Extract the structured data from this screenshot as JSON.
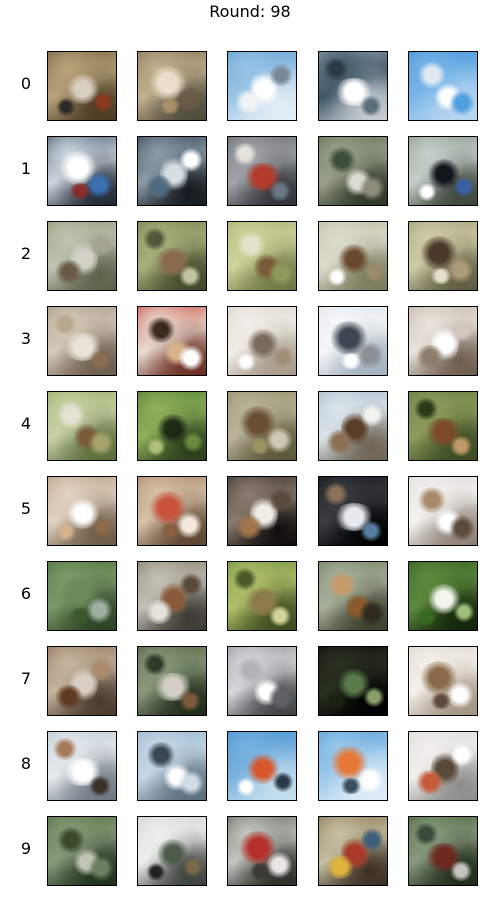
{
  "title": "Round: 98",
  "rows": [
    {
      "label": "0",
      "cells": [
        {
          "bg": [
            "#6e5a3a",
            "#b8a37b",
            "#4a3a22"
          ],
          "c": [
            "#d8cfc0",
            "#8c3a1e",
            "#2b2a26"
          ]
        },
        {
          "bg": [
            "#7c6a4c",
            "#c3b08e",
            "#4d4a3c"
          ],
          "c": [
            "#e9dfcb",
            "#6b5b46",
            "#a89068"
          ]
        },
        {
          "bg": [
            "#5d9ecf",
            "#9ac4e6",
            "#e6eef5"
          ],
          "c": [
            "#ffffff",
            "#f0f3f6",
            "#7a8797"
          ]
        },
        {
          "bg": [
            "#9aa7b4",
            "#3e5666",
            "#c9ced3"
          ],
          "c": [
            "#ffffff",
            "#5b6e7c",
            "#2d3b45"
          ]
        },
        {
          "bg": [
            "#3c8fd8",
            "#7ab6e8",
            "#b9d6ef"
          ],
          "c": [
            "#ffffff",
            "#dfe9f2",
            "#4f9ee0"
          ]
        }
      ]
    },
    {
      "label": "1",
      "cells": [
        {
          "bg": [
            "#394a5e",
            "#ced6de",
            "#1f2733"
          ],
          "c": [
            "#ffffff",
            "#3d6fb3",
            "#8a2d2a"
          ]
        },
        {
          "bg": [
            "#2a3b48",
            "#8c9ba8",
            "#14191e"
          ],
          "c": [
            "#d6dde3",
            "#506b7f",
            "#ffffff"
          ]
        },
        {
          "bg": [
            "#5a5f66",
            "#a2a6aa",
            "#2f3136"
          ],
          "c": [
            "#b43a2c",
            "#6a7784",
            "#e5e2dc"
          ]
        },
        {
          "bg": [
            "#5b6b4a",
            "#9aa28c",
            "#2c3425"
          ],
          "c": [
            "#d9ddd6",
            "#3e4e3a",
            "#8d8b7a"
          ]
        },
        {
          "bg": [
            "#7f8f80",
            "#c6cfc9",
            "#3b4438"
          ],
          "c": [
            "#11161b",
            "#3b5fa4",
            "#ffffff"
          ]
        }
      ]
    },
    {
      "label": "2",
      "cells": [
        {
          "bg": [
            "#8c9670",
            "#bfc3b0",
            "#5c6148"
          ],
          "c": [
            "#d3d2c8",
            "#6b5b46",
            "#a3a48f"
          ]
        },
        {
          "bg": [
            "#6f7c4c",
            "#a9b17b",
            "#3e4729"
          ],
          "c": [
            "#8a6c4d",
            "#c6c2a4",
            "#51583c"
          ]
        },
        {
          "bg": [
            "#a2ac6a",
            "#cfd39b",
            "#6e7642"
          ],
          "c": [
            "#7a5a3a",
            "#e5e2cc",
            "#8f9a5a"
          ]
        },
        {
          "bg": [
            "#b9b99a",
            "#dcdccb",
            "#7a7a5c"
          ],
          "c": [
            "#6a4a2e",
            "#9c8a6a",
            "#ffffff"
          ]
        },
        {
          "bg": [
            "#9e9a70",
            "#cfcba6",
            "#5e5c40"
          ],
          "c": [
            "#4b3a2a",
            "#ad9a78",
            "#e4dfca"
          ]
        }
      ]
    },
    {
      "label": "3",
      "cells": [
        {
          "bg": [
            "#a0907c",
            "#d4cab9",
            "#6a5c4a"
          ],
          "c": [
            "#e9e3da",
            "#8a6e52",
            "#b8a890"
          ]
        },
        {
          "bg": [
            "#c63a2e",
            "#e9ddd2",
            "#6a2a1e"
          ],
          "c": [
            "#d8b28a",
            "#3c2a1e",
            "#ffffff"
          ]
        },
        {
          "bg": [
            "#d6d0c6",
            "#f1eee9",
            "#a59a8a"
          ],
          "c": [
            "#7a6a5a",
            "#a38e78",
            "#ffffff"
          ]
        },
        {
          "bg": [
            "#d9e1ea",
            "#f5f7f9",
            "#a4b0bc"
          ],
          "c": [
            "#3e4652",
            "#8c8f94",
            "#ffffff"
          ]
        },
        {
          "bg": [
            "#b7a99b",
            "#e9e3dc",
            "#6d5d4f"
          ],
          "c": [
            "#ffffff",
            "#8e7d6e",
            "#d1c9bf"
          ]
        }
      ]
    },
    {
      "label": "4",
      "cells": [
        {
          "bg": [
            "#8ea65e",
            "#c9d3a7",
            "#5a6b3a"
          ],
          "c": [
            "#7a5a3a",
            "#e4e2d2",
            "#a4a46a"
          ]
        },
        {
          "bg": [
            "#4a7a2e",
            "#8fb05a",
            "#2a3e1a"
          ],
          "c": [
            "#1e2a14",
            "#6c8a3e",
            "#b0c07a"
          ]
        },
        {
          "bg": [
            "#8c8a5c",
            "#bab49a",
            "#5a5638"
          ],
          "c": [
            "#6b4f35",
            "#cfc9b4",
            "#9a9460"
          ]
        },
        {
          "bg": [
            "#a1b4c3",
            "#dbe4ea",
            "#6d6353"
          ],
          "c": [
            "#5a3e2a",
            "#8c7054",
            "#f2f2ee"
          ]
        },
        {
          "bg": [
            "#5e7a3a",
            "#8e9c5c",
            "#3a4a22"
          ],
          "c": [
            "#7a4a2a",
            "#c09a6a",
            "#2c3a1a"
          ]
        }
      ]
    },
    {
      "label": "5",
      "cells": [
        {
          "bg": [
            "#b09478",
            "#e1d3c2",
            "#6e5a44"
          ],
          "c": [
            "#ffffff",
            "#8c6a4a",
            "#d6b28e"
          ]
        },
        {
          "bg": [
            "#a07c5c",
            "#d8c2a8",
            "#5a4430"
          ],
          "c": [
            "#c8523a",
            "#f2e8dc",
            "#8a6040"
          ]
        },
        {
          "bg": [
            "#2c2622",
            "#8b7c70",
            "#0f0d0c"
          ],
          "c": [
            "#f1ece6",
            "#a0764a",
            "#5a4a3c"
          ]
        },
        {
          "bg": [
            "#0f1012",
            "#3a3e44",
            "#000000"
          ],
          "c": [
            "#e6eaee",
            "#5a7ea2",
            "#8c7058"
          ]
        },
        {
          "bg": [
            "#d9d6d2",
            "#f4f2ef",
            "#8d8076"
          ],
          "c": [
            "#ffffff",
            "#a88a6a",
            "#5c4a3c"
          ]
        }
      ]
    },
    {
      "label": "6",
      "cells": [
        {
          "bg": [
            "#4b6e3a",
            "#7a9a6a",
            "#2a4222"
          ],
          "c": [
            "#6a8a5a",
            "#a0b0a0",
            "#3a5a2e"
          ]
        },
        {
          "bg": [
            "#7c7460",
            "#c4c0b6",
            "#3a3a32"
          ],
          "c": [
            "#8a5a3a",
            "#e5e2dc",
            "#5a4a3a"
          ]
        },
        {
          "bg": [
            "#6a8a3a",
            "#b0c06a",
            "#3a4a1e"
          ],
          "c": [
            "#8c7a4a",
            "#d4d49a",
            "#4a5a2a"
          ]
        },
        {
          "bg": [
            "#6a7a5a",
            "#a8b09a",
            "#3a3e2e"
          ],
          "c": [
            "#8a5a2a",
            "#c69a6a",
            "#2e2a22"
          ]
        },
        {
          "bg": [
            "#2e5a1e",
            "#5e8a3e",
            "#12240a"
          ],
          "c": [
            "#f4f6ee",
            "#a0c07a",
            "#3a6a22"
          ]
        }
      ]
    },
    {
      "label": "7",
      "cells": [
        {
          "bg": [
            "#8a6a4e",
            "#c6b4a0",
            "#4a3a2a"
          ],
          "c": [
            "#d8cfc2",
            "#5e3a22",
            "#aa8a6a"
          ]
        },
        {
          "bg": [
            "#4a5a3a",
            "#8a9a7a",
            "#1e2a1a"
          ],
          "c": [
            "#d4cfc6",
            "#7a5a3a",
            "#2e3a2a"
          ]
        },
        {
          "bg": [
            "#8c8e90",
            "#d6d8da",
            "#3e4042"
          ],
          "c": [
            "#ffffff",
            "#b0b4b8",
            "#5e6266"
          ]
        },
        {
          "bg": [
            "#0a0b0a",
            "#2a3222",
            "#000000"
          ],
          "c": [
            "#5a7a4a",
            "#8aa06a",
            "#1a2214"
          ]
        },
        {
          "bg": [
            "#d8d2c6",
            "#f4f0ea",
            "#a39482"
          ],
          "c": [
            "#8a6a4a",
            "#ffffff",
            "#5e4a3a"
          ]
        }
      ]
    },
    {
      "label": "8",
      "cells": [
        {
          "bg": [
            "#b7c3cc",
            "#e5eaee",
            "#6d7680"
          ],
          "c": [
            "#ffffff",
            "#3a3028",
            "#a47a5a"
          ]
        },
        {
          "bg": [
            "#8fb1cc",
            "#c6d8e6",
            "#5a6e7e"
          ],
          "c": [
            "#ffffff",
            "#3a4654",
            "#d0dbe4"
          ]
        },
        {
          "bg": [
            "#3d8fcf",
            "#7ab2df",
            "#c6dfee"
          ],
          "c": [
            "#d8562a",
            "#2a3a4a",
            "#ffffff"
          ]
        },
        {
          "bg": [
            "#4f9bd7",
            "#9ac8ea",
            "#e0edf6"
          ],
          "c": [
            "#e8783a",
            "#ffffff",
            "#3a4e62"
          ]
        },
        {
          "bg": [
            "#d8d8d6",
            "#f0efec",
            "#8c8c8a"
          ],
          "c": [
            "#5a4a3a",
            "#c65a3a",
            "#ffffff"
          ]
        }
      ]
    },
    {
      "label": "9",
      "cells": [
        {
          "bg": [
            "#4a6a3a",
            "#8a9a7a",
            "#1e2e1a"
          ],
          "c": [
            "#c0c4b6",
            "#3a4a2a",
            "#6e7e5e"
          ]
        },
        {
          "bg": [
            "#c8ccca",
            "#eef0ee",
            "#3a3e3a"
          ],
          "c": [
            "#4e5a4a",
            "#7a6a4a",
            "#1e221e"
          ]
        },
        {
          "bg": [
            "#5a5a52",
            "#c4c6c0",
            "#2a2a26"
          ],
          "c": [
            "#b4302a",
            "#e8e6e2",
            "#3a3a32"
          ]
        },
        {
          "bg": [
            "#7a6a4a",
            "#c6c0a0",
            "#3a2e22"
          ],
          "c": [
            "#a83a2a",
            "#e0b43a",
            "#3e5e7a"
          ]
        },
        {
          "bg": [
            "#3e5e32",
            "#8a9a7e",
            "#1e2a18"
          ],
          "c": [
            "#6e2a22",
            "#c6c6c0",
            "#3a4a3a"
          ]
        }
      ]
    }
  ]
}
